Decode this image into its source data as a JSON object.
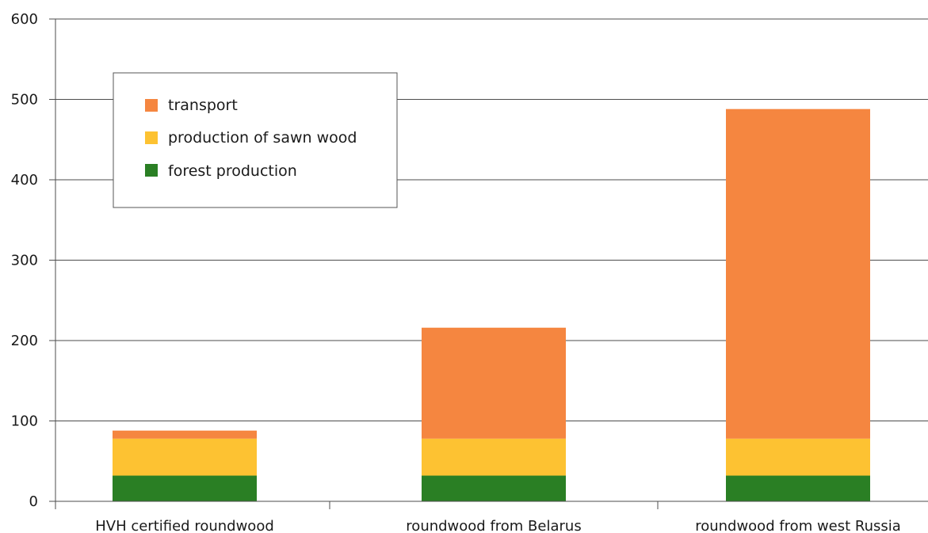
{
  "chart_data": {
    "type": "bar",
    "stacked": true,
    "categories": [
      "HVH certified roundwood",
      "roundwood from Belarus",
      "roundwood from west Russia"
    ],
    "series": [
      {
        "name": "forest production",
        "color": "#2a7f24",
        "values": [
          32,
          32,
          32
        ]
      },
      {
        "name": "production of sawn wood",
        "color": "#fdc232",
        "values": [
          46,
          46,
          46
        ]
      },
      {
        "name": "transport",
        "color": "#f58640",
        "values": [
          10,
          138,
          410
        ]
      }
    ],
    "ylim": [
      0,
      600
    ],
    "yticks": [
      0,
      100,
      200,
      300,
      400,
      500,
      600
    ],
    "grid": true,
    "legend": {
      "position": "top-left",
      "entries": [
        "transport",
        "production of sawn wood",
        "forest production"
      ]
    },
    "xlabel": "",
    "ylabel": "",
    "title": ""
  }
}
